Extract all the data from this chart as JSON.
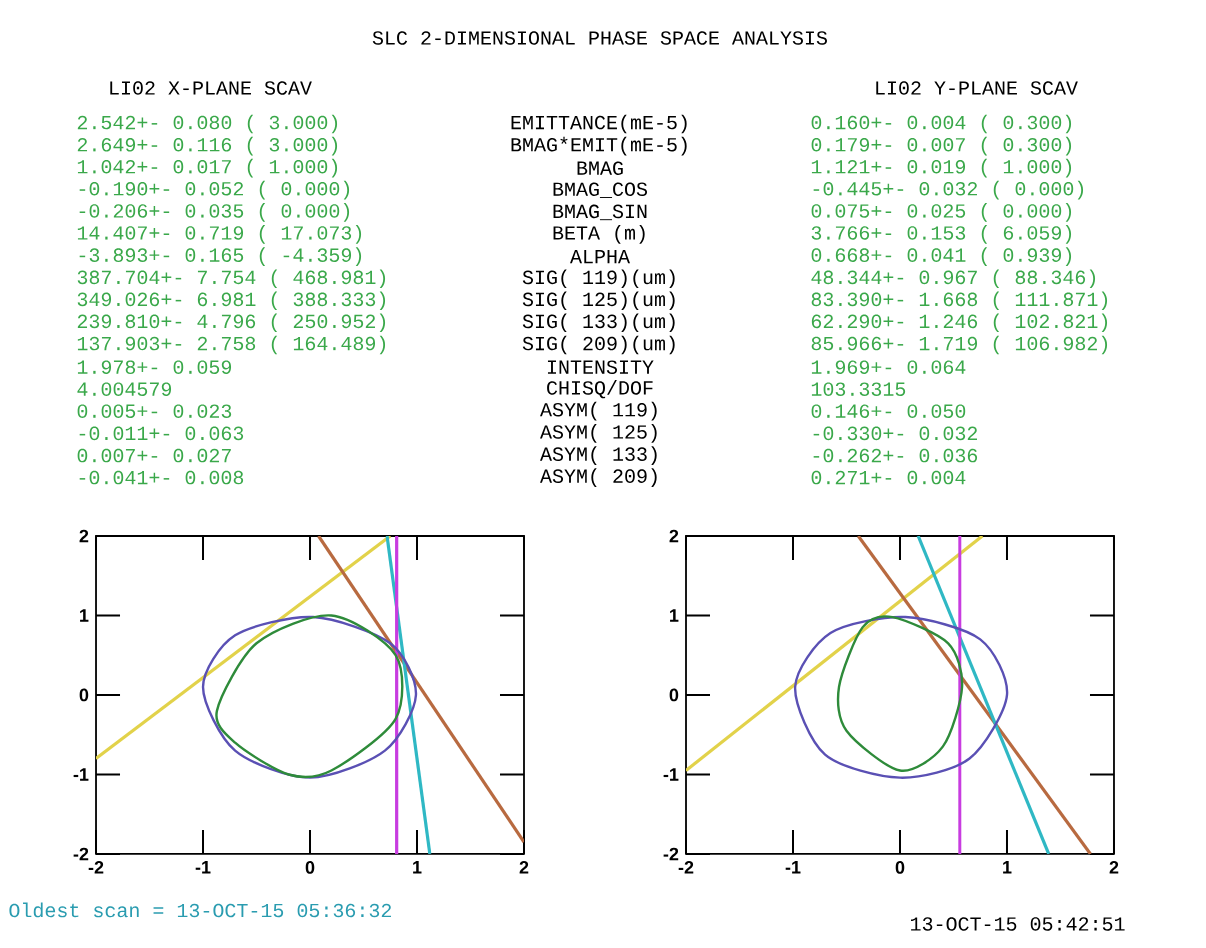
{
  "chart_data": [
    {
      "type": "line",
      "title": "SLC 2-DIMENSIONAL PHASE SPACE ANALYSIS",
      "subtitle": "LI02 X-PLANE SCAV",
      "xlim": [
        -2,
        2
      ],
      "ylim": [
        -2,
        2
      ],
      "xticks": [
        -2,
        -1,
        0,
        1,
        2
      ],
      "yticks": [
        -2,
        -1,
        0,
        1,
        2
      ],
      "series": [
        {
          "color": "#e2d24a",
          "x": [
            -2,
            0.75
          ],
          "values": [
            -0.8,
            2
          ]
        },
        {
          "color": "#b86a40",
          "x": [
            0.08,
            2
          ],
          "values": [
            2,
            -1.85
          ]
        },
        {
          "color": "#2fb8c4",
          "x": [
            0.72,
            1.12
          ],
          "values": [
            2,
            -2
          ]
        },
        {
          "color": "#c83ce0",
          "x": [
            0.81,
            0.81
          ],
          "values": [
            2,
            -2
          ]
        }
      ],
      "annotations": [
        "2.542+- 0.080 ( 3.000)",
        "2.649+- 0.116 ( 3.000)",
        "1.042+- 0.017 ( 1.000)",
        "-0.190+- 0.052 ( 0.000)",
        "-0.206+- 0.035 ( 0.000)",
        "14.407+- 0.719 ( 17.073)",
        "-3.893+- 0.165 ( -4.359)",
        "387.704+- 7.754 ( 468.981)",
        "349.026+- 6.981 ( 388.333)",
        "239.810+- 4.796 ( 250.952)",
        "137.903+- 2.758 ( 164.489)",
        "1.978+- 0.059",
        "4.004579",
        "0.005+- 0.023",
        "-0.011+- 0.063",
        "0.007+- 0.027",
        "-0.041+- 0.008",
        "EMITTANCE(mE-5)",
        "BMAG*EMIT(mE-5)",
        "BMAG",
        "BMAG_COS",
        "BMAG_SIN",
        "BETA (m)",
        "ALPHA",
        "SIG( 119)(um)",
        "SIG( 125)(um)",
        "SIG( 133)(um)",
        "SIG( 209)(um)",
        "INTENSITY",
        "CHISQ/DOF",
        "ASYM( 119)",
        "ASYM( 125)",
        "ASYM( 133)",
        "ASYM( 209)",
        "Oldest scan = 13-OCT-15 05:36:32"
      ]
    },
    {
      "type": "line",
      "subtitle": "LI02 Y-PLANE SCAV",
      "xlim": [
        -2,
        2
      ],
      "ylim": [
        -2,
        2
      ],
      "xticks": [
        -2,
        -1,
        0,
        1,
        2
      ],
      "yticks": [
        -2,
        -1,
        0,
        1,
        2
      ],
      "series": [
        {
          "color": "#e2d24a",
          "x": [
            -2,
            0.77
          ],
          "values": [
            -0.95,
            2
          ]
        },
        {
          "color": "#b86a40",
          "x": [
            -0.39,
            1.78
          ],
          "values": [
            2,
            -2
          ]
        },
        {
          "color": "#2fb8c4",
          "x": [
            0.17,
            1.39
          ],
          "values": [
            2,
            -2
          ]
        },
        {
          "color": "#c83ce0",
          "x": [
            0.56,
            0.56
          ],
          "values": [
            2,
            -2
          ]
        }
      ],
      "annotations": [
        "0.160+- 0.004 ( 0.300)",
        "0.179+- 0.007 ( 0.300)",
        "1.121+- 0.019 ( 1.000)",
        "-0.445+- 0.032 ( 0.000)",
        "0.075+- 0.025 ( 0.000)",
        "3.766+- 0.153 ( 6.059)",
        "0.668+- 0.041 ( 0.939)",
        "48.344+- 0.967 ( 88.346)",
        "83.390+- 1.668 ( 111.871)",
        "62.290+- 1.246 ( 102.821)",
        "85.966+- 1.719 ( 106.982)",
        "1.969+- 0.064",
        "103.3315",
        "0.146+- 0.050",
        "-0.330+- 0.032",
        "-0.262+- 0.036",
        "0.271+- 0.004",
        "13-OCT-15 05:42:51"
      ]
    }
  ]
}
